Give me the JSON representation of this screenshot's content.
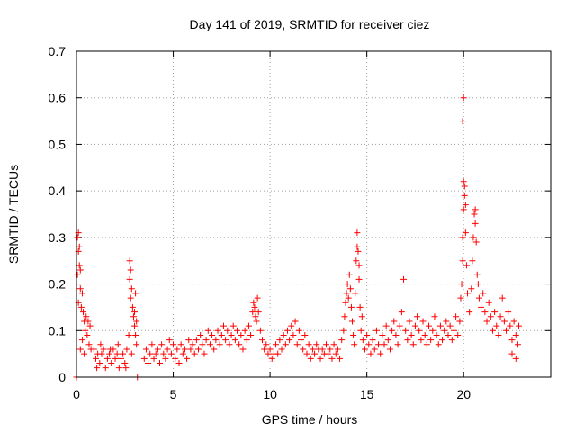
{
  "chart_data": {
    "type": "scatter",
    "title": "Day 141 of 2019, SRMTID for receiver ciez",
    "xlabel": "GPS time / hours",
    "ylabel": "SRMTID / TECUs",
    "xlim": [
      0,
      24.5
    ],
    "ylim": [
      0,
      0.7
    ],
    "xticks": [
      0,
      5,
      10,
      15,
      20
    ],
    "xtick_labels": [
      "0",
      "5",
      "10",
      "15",
      "20"
    ],
    "yticks": [
      0,
      0.1,
      0.2,
      0.3,
      0.4,
      0.5,
      0.6,
      0.7
    ],
    "ytick_labels": [
      "0",
      "0.1",
      "0.2",
      "0.3",
      "0.4",
      "0.5",
      "0.6",
      "0.7"
    ],
    "grid": true,
    "marker": "+",
    "color": "#ff0000",
    "series": [
      {
        "name": "SRMTID",
        "points": [
          [
            0.0,
            0.0
          ],
          [
            3.15,
            0.0
          ],
          [
            0.05,
            0.3
          ],
          [
            0.1,
            0.31
          ],
          [
            0.15,
            0.28
          ],
          [
            0.1,
            0.27
          ],
          [
            0.2,
            0.23
          ],
          [
            0.15,
            0.24
          ],
          [
            0.05,
            0.22
          ],
          [
            0.2,
            0.19
          ],
          [
            0.3,
            0.18
          ],
          [
            0.25,
            0.15
          ],
          [
            0.35,
            0.14
          ],
          [
            0.1,
            0.16
          ],
          [
            0.4,
            0.12
          ],
          [
            0.45,
            0.1
          ],
          [
            0.5,
            0.13
          ],
          [
            0.55,
            0.09
          ],
          [
            0.6,
            0.12
          ],
          [
            0.3,
            0.08
          ],
          [
            0.7,
            0.11
          ],
          [
            0.65,
            0.07
          ],
          [
            0.75,
            0.06
          ],
          [
            0.2,
            0.06
          ],
          [
            0.4,
            0.05
          ],
          [
            0.9,
            0.06
          ],
          [
            1.0,
            0.04
          ],
          [
            1.1,
            0.05
          ],
          [
            1.2,
            0.03
          ],
          [
            1.3,
            0.05
          ],
          [
            1.4,
            0.06
          ],
          [
            1.5,
            0.02
          ],
          [
            1.6,
            0.04
          ],
          [
            1.7,
            0.05
          ],
          [
            1.8,
            0.03
          ],
          [
            1.9,
            0.06
          ],
          [
            2.0,
            0.04
          ],
          [
            2.1,
            0.05
          ],
          [
            2.2,
            0.02
          ],
          [
            2.3,
            0.04
          ],
          [
            2.4,
            0.05
          ],
          [
            2.5,
            0.03
          ],
          [
            2.6,
            0.06
          ],
          [
            1.25,
            0.07
          ],
          [
            1.75,
            0.06
          ],
          [
            2.15,
            0.07
          ],
          [
            1.05,
            0.02
          ],
          [
            2.55,
            0.02
          ],
          [
            2.75,
            0.25
          ],
          [
            2.8,
            0.23
          ],
          [
            2.75,
            0.21
          ],
          [
            2.85,
            0.19
          ],
          [
            2.8,
            0.17
          ],
          [
            2.9,
            0.15
          ],
          [
            2.95,
            0.13
          ],
          [
            3.0,
            0.11
          ],
          [
            3.05,
            0.09
          ],
          [
            3.1,
            0.07
          ],
          [
            2.85,
            0.05
          ],
          [
            3.0,
            0.14
          ],
          [
            3.05,
            0.18
          ],
          [
            3.1,
            0.12
          ],
          [
            2.7,
            0.09
          ],
          [
            3.5,
            0.04
          ],
          [
            3.6,
            0.06
          ],
          [
            3.7,
            0.03
          ],
          [
            3.8,
            0.05
          ],
          [
            3.9,
            0.07
          ],
          [
            4.0,
            0.04
          ],
          [
            4.1,
            0.05
          ],
          [
            4.2,
            0.06
          ],
          [
            4.3,
            0.03
          ],
          [
            4.4,
            0.07
          ],
          [
            4.5,
            0.05
          ],
          [
            4.6,
            0.04
          ],
          [
            4.7,
            0.06
          ],
          [
            4.8,
            0.08
          ],
          [
            4.9,
            0.05
          ],
          [
            5.0,
            0.07
          ],
          [
            5.1,
            0.04
          ],
          [
            5.2,
            0.06
          ],
          [
            5.3,
            0.03
          ],
          [
            5.4,
            0.07
          ],
          [
            5.5,
            0.05
          ],
          [
            5.6,
            0.06
          ],
          [
            5.7,
            0.04
          ],
          [
            5.8,
            0.08
          ],
          [
            5.9,
            0.06
          ],
          [
            6.0,
            0.07
          ],
          [
            6.1,
            0.05
          ],
          [
            6.2,
            0.08
          ],
          [
            6.3,
            0.06
          ],
          [
            6.4,
            0.09
          ],
          [
            6.5,
            0.07
          ],
          [
            6.6,
            0.05
          ],
          [
            6.7,
            0.08
          ],
          [
            6.8,
            0.1
          ],
          [
            6.9,
            0.07
          ],
          [
            7.0,
            0.09
          ],
          [
            7.1,
            0.06
          ],
          [
            7.2,
            0.08
          ],
          [
            7.3,
            0.1
          ],
          [
            7.4,
            0.07
          ],
          [
            7.5,
            0.09
          ],
          [
            7.6,
            0.11
          ],
          [
            7.7,
            0.08
          ],
          [
            7.8,
            0.1
          ],
          [
            7.9,
            0.07
          ],
          [
            8.0,
            0.09
          ],
          [
            8.1,
            0.11
          ],
          [
            8.2,
            0.08
          ],
          [
            8.3,
            0.1
          ],
          [
            8.4,
            0.07
          ],
          [
            8.5,
            0.09
          ],
          [
            8.6,
            0.06
          ],
          [
            8.7,
            0.1
          ],
          [
            8.8,
            0.08
          ],
          [
            8.9,
            0.11
          ],
          [
            9.0,
            0.09
          ],
          [
            9.1,
            0.14
          ],
          [
            9.15,
            0.16
          ],
          [
            9.2,
            0.15
          ],
          [
            9.25,
            0.13
          ],
          [
            9.3,
            0.12
          ],
          [
            9.35,
            0.17
          ],
          [
            9.4,
            0.14
          ],
          [
            9.5,
            0.1
          ],
          [
            9.6,
            0.08
          ],
          [
            9.7,
            0.06
          ],
          [
            9.8,
            0.07
          ],
          [
            9.9,
            0.05
          ],
          [
            10.0,
            0.06
          ],
          [
            10.1,
            0.04
          ],
          [
            10.2,
            0.05
          ],
          [
            10.3,
            0.07
          ],
          [
            10.4,
            0.05
          ],
          [
            10.5,
            0.08
          ],
          [
            10.6,
            0.06
          ],
          [
            10.7,
            0.09
          ],
          [
            10.8,
            0.07
          ],
          [
            10.9,
            0.1
          ],
          [
            11.0,
            0.08
          ],
          [
            11.1,
            0.11
          ],
          [
            11.2,
            0.09
          ],
          [
            11.3,
            0.12
          ],
          [
            11.4,
            0.07
          ],
          [
            11.5,
            0.1
          ],
          [
            11.6,
            0.08
          ],
          [
            11.7,
            0.06
          ],
          [
            11.8,
            0.09
          ],
          [
            11.9,
            0.05
          ],
          [
            12.0,
            0.07
          ],
          [
            12.1,
            0.04
          ],
          [
            12.2,
            0.06
          ],
          [
            12.3,
            0.05
          ],
          [
            12.4,
            0.07
          ],
          [
            12.5,
            0.06
          ],
          [
            12.6,
            0.04
          ],
          [
            12.7,
            0.06
          ],
          [
            12.8,
            0.05
          ],
          [
            12.9,
            0.07
          ],
          [
            13.0,
            0.05
          ],
          [
            13.1,
            0.06
          ],
          [
            13.2,
            0.04
          ],
          [
            13.3,
            0.07
          ],
          [
            13.4,
            0.05
          ],
          [
            13.5,
            0.06
          ],
          [
            13.6,
            0.04
          ],
          [
            13.7,
            0.08
          ],
          [
            13.8,
            0.1
          ],
          [
            13.85,
            0.13
          ],
          [
            13.9,
            0.16
          ],
          [
            13.95,
            0.18
          ],
          [
            14.0,
            0.2
          ],
          [
            14.05,
            0.17
          ],
          [
            14.1,
            0.22
          ],
          [
            14.15,
            0.19
          ],
          [
            14.2,
            0.15
          ],
          [
            14.25,
            0.12
          ],
          [
            14.3,
            0.09
          ],
          [
            14.35,
            0.07
          ],
          [
            14.4,
            0.18
          ],
          [
            14.45,
            0.25
          ],
          [
            14.5,
            0.28
          ],
          [
            14.5,
            0.31
          ],
          [
            14.55,
            0.27
          ],
          [
            14.6,
            0.24
          ],
          [
            14.6,
            0.21
          ],
          [
            14.65,
            0.15
          ],
          [
            14.7,
            0.1
          ],
          [
            14.75,
            0.13
          ],
          [
            14.8,
            0.08
          ],
          [
            14.9,
            0.06
          ],
          [
            15.0,
            0.09
          ],
          [
            15.1,
            0.07
          ],
          [
            15.2,
            0.05
          ],
          [
            15.3,
            0.08
          ],
          [
            15.4,
            0.06
          ],
          [
            15.5,
            0.1
          ],
          [
            15.6,
            0.07
          ],
          [
            15.7,
            0.05
          ],
          [
            15.8,
            0.09
          ],
          [
            15.9,
            0.07
          ],
          [
            16.0,
            0.11
          ],
          [
            16.1,
            0.08
          ],
          [
            16.2,
            0.06
          ],
          [
            16.3,
            0.1
          ],
          [
            16.4,
            0.12
          ],
          [
            16.5,
            0.09
          ],
          [
            16.6,
            0.07
          ],
          [
            16.7,
            0.11
          ],
          [
            16.8,
            0.14
          ],
          [
            16.9,
            0.21
          ],
          [
            17.0,
            0.1
          ],
          [
            17.1,
            0.08
          ],
          [
            17.2,
            0.12
          ],
          [
            17.3,
            0.09
          ],
          [
            17.4,
            0.07
          ],
          [
            17.5,
            0.11
          ],
          [
            17.6,
            0.13
          ],
          [
            17.7,
            0.1
          ],
          [
            17.8,
            0.08
          ],
          [
            17.9,
            0.12
          ],
          [
            18.0,
            0.09
          ],
          [
            18.1,
            0.07
          ],
          [
            18.2,
            0.11
          ],
          [
            18.3,
            0.08
          ],
          [
            18.4,
            0.1
          ],
          [
            18.5,
            0.13
          ],
          [
            18.6,
            0.09
          ],
          [
            18.7,
            0.07
          ],
          [
            18.8,
            0.11
          ],
          [
            18.9,
            0.08
          ],
          [
            19.0,
            0.1
          ],
          [
            19.1,
            0.12
          ],
          [
            19.2,
            0.09
          ],
          [
            19.3,
            0.11
          ],
          [
            19.4,
            0.08
          ],
          [
            19.5,
            0.1
          ],
          [
            19.6,
            0.13
          ],
          [
            19.7,
            0.09
          ],
          [
            19.8,
            0.12
          ],
          [
            19.85,
            0.17
          ],
          [
            19.9,
            0.2
          ],
          [
            19.95,
            0.25
          ],
          [
            19.95,
            0.3
          ],
          [
            20.0,
            0.36
          ],
          [
            20.0,
            0.42
          ],
          [
            20.05,
            0.41
          ],
          [
            19.95,
            0.55
          ],
          [
            20.0,
            0.6
          ],
          [
            20.05,
            0.39
          ],
          [
            20.1,
            0.37
          ],
          [
            20.1,
            0.31
          ],
          [
            20.15,
            0.24
          ],
          [
            20.2,
            0.18
          ],
          [
            20.3,
            0.14
          ],
          [
            20.4,
            0.19
          ],
          [
            20.45,
            0.25
          ],
          [
            20.5,
            0.3
          ],
          [
            20.55,
            0.35
          ],
          [
            20.6,
            0.36
          ],
          [
            20.6,
            0.33
          ],
          [
            20.65,
            0.29
          ],
          [
            20.7,
            0.22
          ],
          [
            20.75,
            0.2
          ],
          [
            20.8,
            0.17
          ],
          [
            20.9,
            0.15
          ],
          [
            21.0,
            0.18
          ],
          [
            21.1,
            0.14
          ],
          [
            21.2,
            0.12
          ],
          [
            21.3,
            0.16
          ],
          [
            21.4,
            0.13
          ],
          [
            21.5,
            0.1
          ],
          [
            21.6,
            0.14
          ],
          [
            21.7,
            0.11
          ],
          [
            21.8,
            0.09
          ],
          [
            21.9,
            0.13
          ],
          [
            22.0,
            0.17
          ],
          [
            22.1,
            0.12
          ],
          [
            22.2,
            0.1
          ],
          [
            22.3,
            0.14
          ],
          [
            22.4,
            0.11
          ],
          [
            22.5,
            0.08
          ],
          [
            22.6,
            0.12
          ],
          [
            22.7,
            0.09
          ],
          [
            22.8,
            0.07
          ],
          [
            22.85,
            0.11
          ],
          [
            22.5,
            0.05
          ],
          [
            22.7,
            0.04
          ]
        ]
      }
    ]
  }
}
